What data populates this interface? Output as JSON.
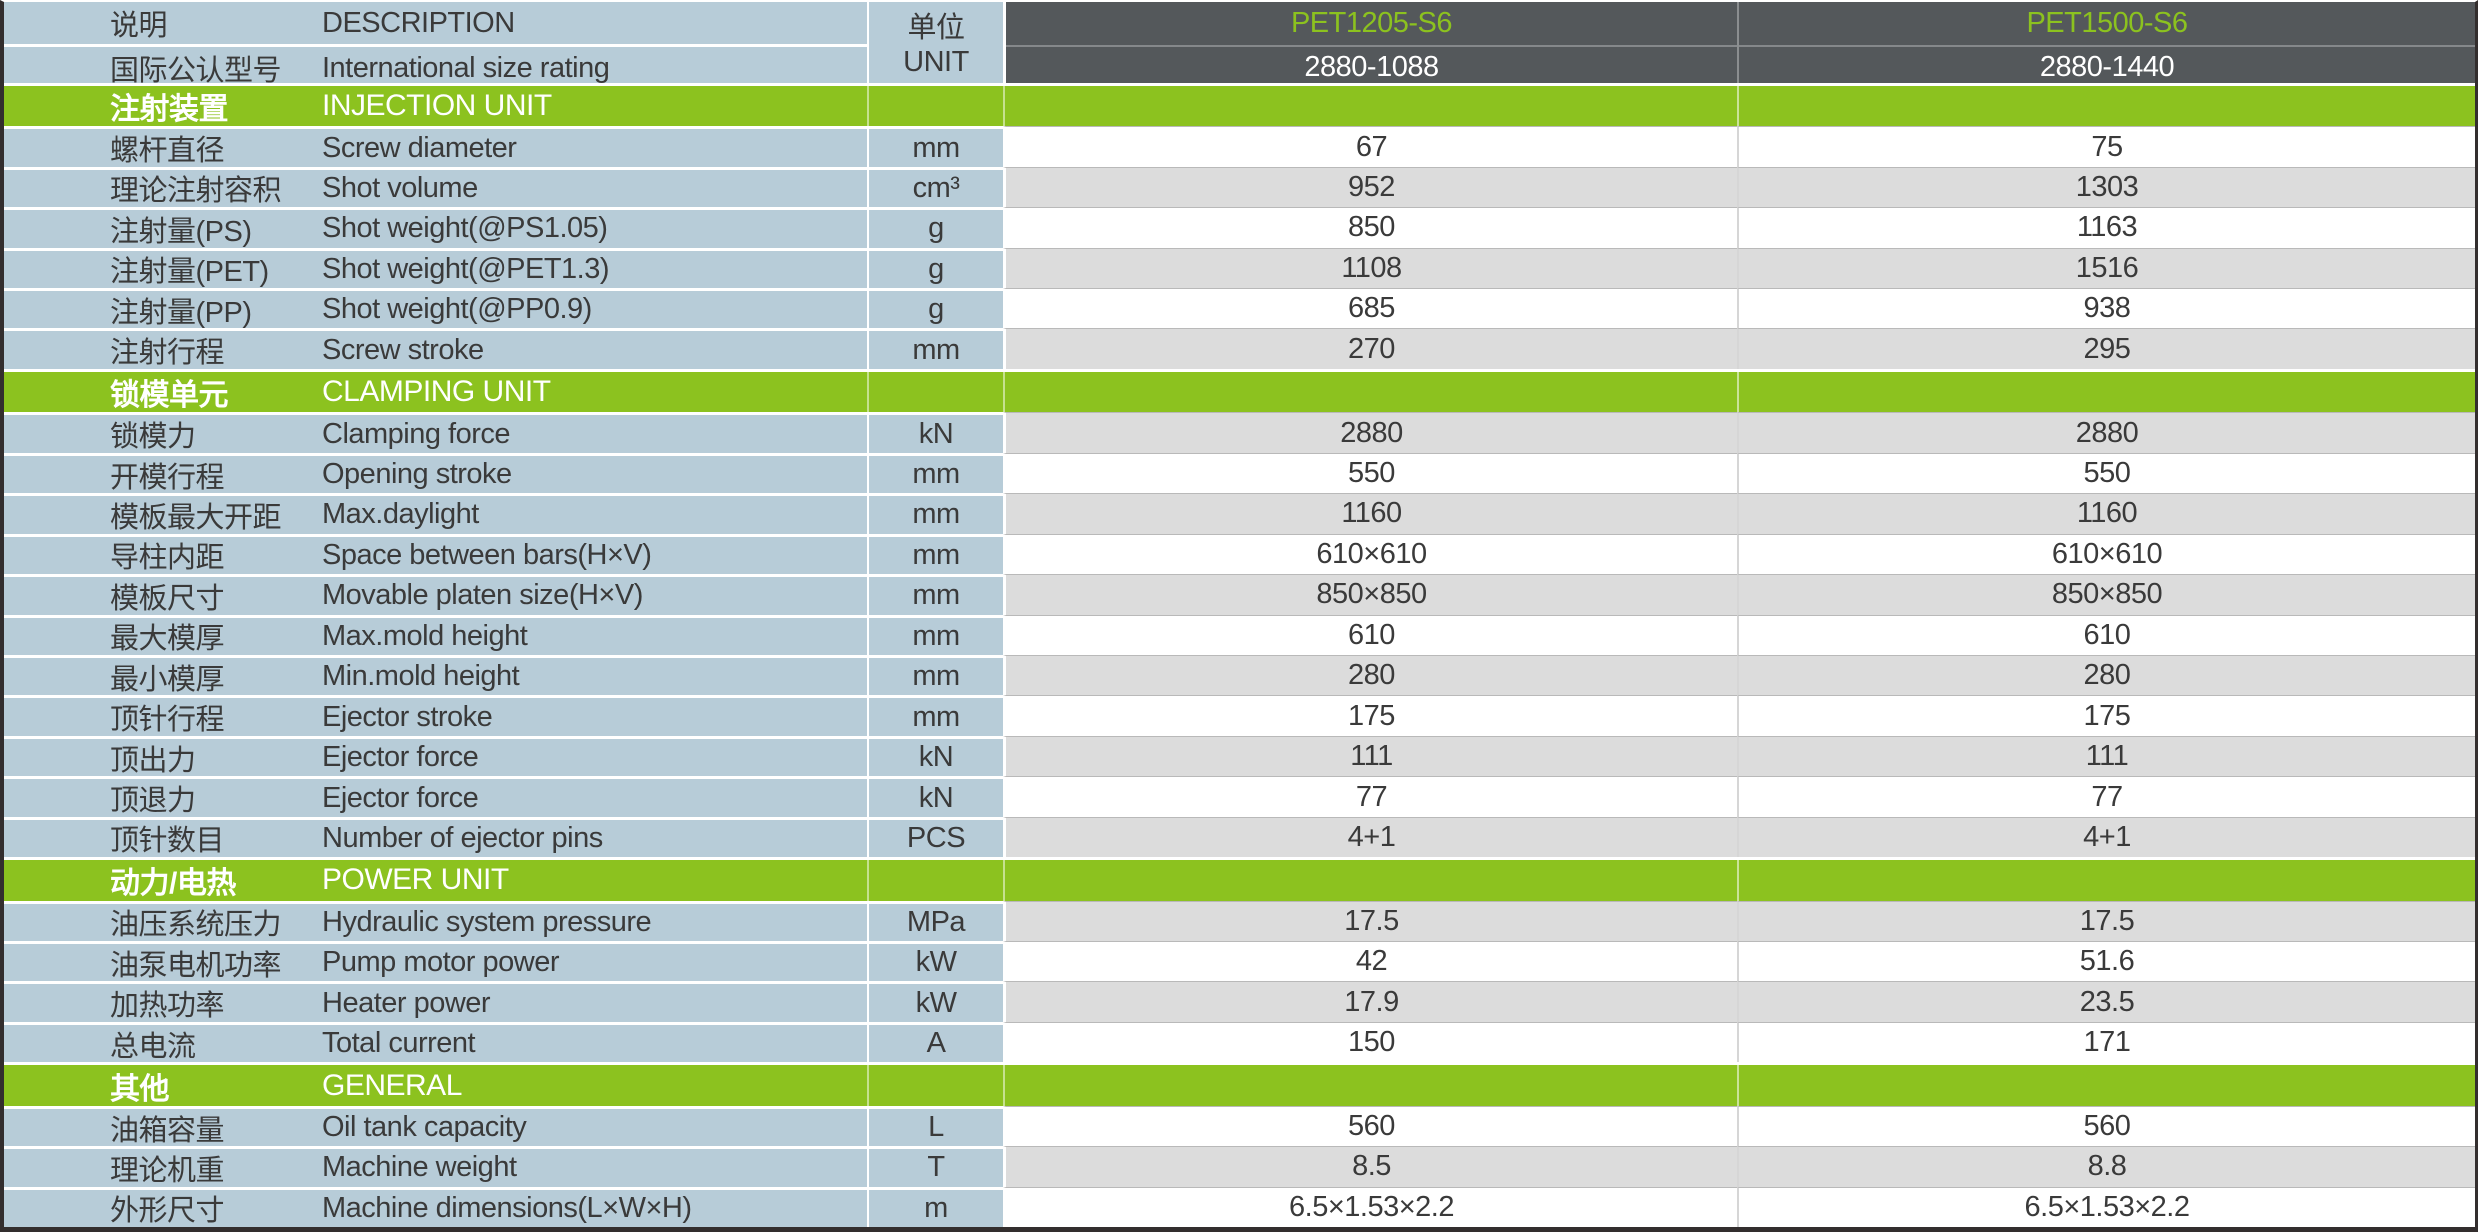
{
  "colors": {
    "label_background": "#b7ccd8",
    "section_accent_green": "#8cc21f",
    "model_header_dark": "#54585b",
    "alt_row_gray": "#dcdcdc",
    "text_ink": "#3a3a3a"
  },
  "table": {
    "header": {
      "col_cn": "说明",
      "col_en": "DESCRIPTION",
      "row2_cn": "国际公认型号",
      "row2_en": "International size rating",
      "unit_cn": "单位",
      "unit_en": "UNIT",
      "models": [
        {
          "name": "PET1205-S6",
          "size_rating": "2880-1088"
        },
        {
          "name": "PET1500-S6",
          "size_rating": "2880-1440"
        }
      ]
    },
    "sections": [
      {
        "title_cn": "注射装置",
        "title_en": "INJECTION UNIT",
        "rows": [
          {
            "cn": "螺杆直径",
            "en": "Screw diameter",
            "unit": "mm",
            "v1": "67",
            "v2": "75",
            "shade": "white"
          },
          {
            "cn": "理论注射容积",
            "en": "Shot volume",
            "unit": "cm³",
            "v1": "952",
            "v2": "1303",
            "shade": "gray"
          },
          {
            "cn": "注射量(PS)",
            "en": "Shot weight(@PS1.05)",
            "unit": "g",
            "v1": "850",
            "v2": "1163",
            "shade": "white"
          },
          {
            "cn": "注射量(PET)",
            "en": "Shot weight(@PET1.3)",
            "unit": "g",
            "v1": "1108",
            "v2": "1516",
            "shade": "gray"
          },
          {
            "cn": "注射量(PP)",
            "en": "Shot weight(@PP0.9)",
            "unit": "g",
            "v1": "685",
            "v2": "938",
            "shade": "white"
          },
          {
            "cn": "注射行程",
            "en": "Screw stroke",
            "unit": "mm",
            "v1": "270",
            "v2": "295",
            "shade": "gray"
          }
        ]
      },
      {
        "title_cn": "锁模单元",
        "title_en": "CLAMPING UNIT",
        "rows": [
          {
            "cn": "锁模力",
            "en": "Clamping force",
            "unit": "kN",
            "v1": "2880",
            "v2": "2880",
            "shade": "gray"
          },
          {
            "cn": "开模行程",
            "en": "Opening stroke",
            "unit": "mm",
            "v1": "550",
            "v2": "550",
            "shade": "white"
          },
          {
            "cn": "模板最大开距",
            "en": "Max.daylight",
            "unit": "mm",
            "v1": "1160",
            "v2": "1160",
            "shade": "gray"
          },
          {
            "cn": "导柱内距",
            "en": "Space between bars(H×V)",
            "unit": "mm",
            "v1": "610×610",
            "v2": "610×610",
            "shade": "white"
          },
          {
            "cn": "模板尺寸",
            "en": "Movable platen size(H×V)",
            "unit": "mm",
            "v1": "850×850",
            "v2": "850×850",
            "shade": "gray"
          },
          {
            "cn": "最大模厚",
            "en": "Max.mold height",
            "unit": "mm",
            "v1": "610",
            "v2": "610",
            "shade": "white"
          },
          {
            "cn": "最小模厚",
            "en": "Min.mold height",
            "unit": "mm",
            "v1": "280",
            "v2": "280",
            "shade": "gray"
          },
          {
            "cn": "顶针行程",
            "en": "Ejector stroke",
            "unit": "mm",
            "v1": "175",
            "v2": "175",
            "shade": "white"
          },
          {
            "cn": "顶出力",
            "en": "Ejector force",
            "unit": "kN",
            "v1": "111",
            "v2": "111",
            "shade": "gray"
          },
          {
            "cn": "顶退力",
            "en": "Ejector force",
            "unit": "kN",
            "v1": "77",
            "v2": "77",
            "shade": "white"
          },
          {
            "cn": "顶针数目",
            "en": "Number of ejector pins",
            "unit": "PCS",
            "v1": "4+1",
            "v2": "4+1",
            "shade": "gray"
          }
        ]
      },
      {
        "title_cn": "动力/电热",
        "title_en": "POWER UNIT",
        "rows": [
          {
            "cn": "油压系统压力",
            "en": "Hydraulic system pressure",
            "unit": "MPa",
            "v1": "17.5",
            "v2": "17.5",
            "shade": "gray"
          },
          {
            "cn": "油泵电机功率",
            "en": "Pump motor power",
            "unit": "kW",
            "v1": "42",
            "v2": "51.6",
            "shade": "white"
          },
          {
            "cn": "加热功率",
            "en": "Heater power",
            "unit": "kW",
            "v1": "17.9",
            "v2": "23.5",
            "shade": "gray"
          },
          {
            "cn": "总电流",
            "en": "Total current",
            "unit": "A",
            "v1": "150",
            "v2": "171",
            "shade": "white"
          }
        ]
      },
      {
        "title_cn": "其他",
        "title_en": "GENERAL",
        "rows": [
          {
            "cn": "油箱容量",
            "en": "Oil tank capacity",
            "unit": "L",
            "v1": "560",
            "v2": "560",
            "shade": "white"
          },
          {
            "cn": "理论机重",
            "en": "Machine weight",
            "unit": "T",
            "v1": "8.5",
            "v2": "8.8",
            "shade": "gray"
          },
          {
            "cn": "外形尺寸",
            "en": "Machine dimensions(L×W×H)",
            "unit": "m",
            "v1": "6.5×1.53×2.2",
            "v2": "6.5×1.53×2.2",
            "shade": "white"
          }
        ]
      }
    ]
  }
}
